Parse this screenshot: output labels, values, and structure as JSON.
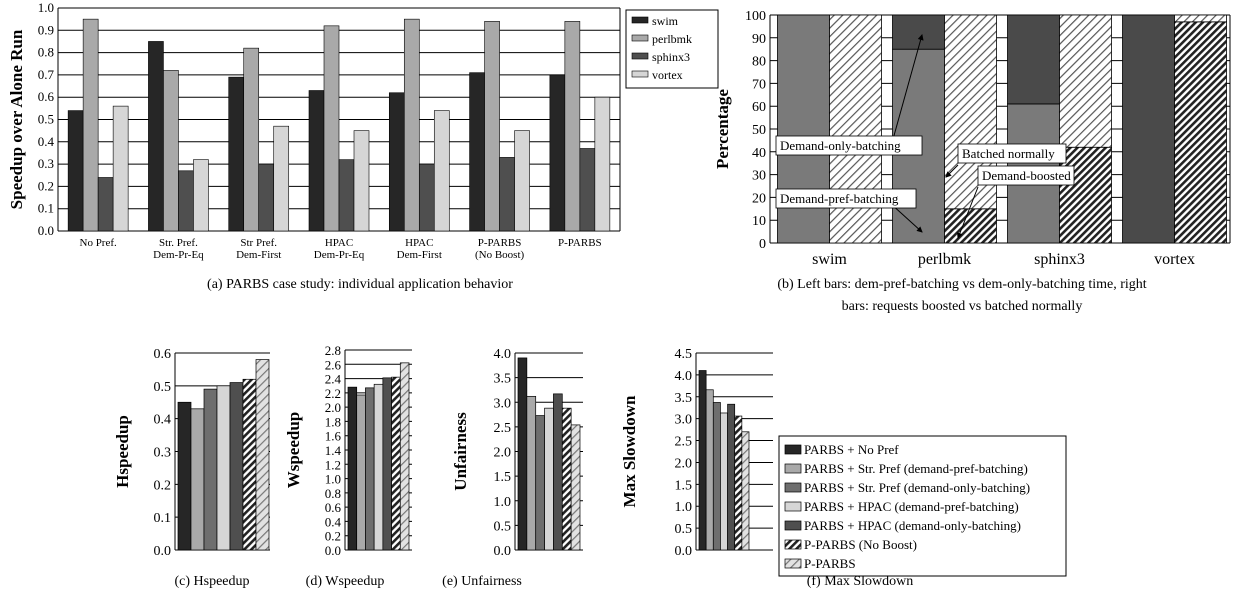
{
  "colors": {
    "c0": "#262626",
    "c1": "#a9a9a9",
    "c2": "#4f4f4f",
    "c3": "#d6d6d6",
    "c4": "#6e6e6e"
  },
  "chart_data": [
    {
      "id": "a",
      "type": "bar",
      "caption": "(a)  PARBS case study: individual application behavior",
      "ylabel": "Speedup over Alone Run",
      "ylim": [
        0,
        1.0
      ],
      "yticks": [
        "0.0",
        "0.1",
        "0.2",
        "0.3",
        "0.4",
        "0.5",
        "0.6",
        "0.7",
        "0.8",
        "0.9",
        "1.0"
      ],
      "categories": [
        [
          "No Pref."
        ],
        [
          "Str. Pref.",
          "Dem-Pr-Eq"
        ],
        [
          "Str Pref.",
          "Dem-First"
        ],
        [
          "HPAC",
          "Dem-Pr-Eq"
        ],
        [
          "HPAC",
          "Dem-First"
        ],
        [
          "P-PARBS",
          "(No Boost)"
        ],
        [
          "P-PARBS"
        ]
      ],
      "series": [
        {
          "name": "swim",
          "color": "#262626",
          "values": [
            0.54,
            0.85,
            0.69,
            0.63,
            0.62,
            0.71,
            0.7
          ]
        },
        {
          "name": "perlbmk",
          "color": "#a9a9a9",
          "values": [
            0.95,
            0.72,
            0.82,
            0.92,
            0.95,
            0.94,
            0.94
          ]
        },
        {
          "name": "sphinx3",
          "color": "#4f4f4f",
          "values": [
            0.24,
            0.27,
            0.3,
            0.32,
            0.3,
            0.33,
            0.37
          ]
        },
        {
          "name": "vortex",
          "color": "#d6d6d6",
          "values": [
            0.56,
            0.32,
            0.47,
            0.45,
            0.54,
            0.45,
            0.6
          ]
        }
      ],
      "grid": true,
      "legend": "right"
    },
    {
      "id": "b",
      "type": "stacked-bar",
      "caption_lines": [
        "(b)  Left bars: dem-pref-batching vs dem-only-batching time, right",
        "bars: requests boosted vs batched normally"
      ],
      "ylabel": "Percentage",
      "ylim": [
        0,
        100
      ],
      "yticks": [
        "0",
        "10",
        "20",
        "30",
        "40",
        "50",
        "60",
        "70",
        "80",
        "90",
        "100"
      ],
      "categories": [
        "swim",
        "perlbmk",
        "sphinx3",
        "vortex"
      ],
      "left_bars": {
        "demand_pref_batching": [
          100,
          85,
          61,
          0
        ],
        "demand_only_batching": [
          0,
          15,
          39,
          100
        ]
      },
      "right_bars": {
        "demand_boosted": [
          0,
          15,
          42,
          97
        ],
        "batched_normally": [
          100,
          85,
          58,
          3
        ]
      },
      "annotations": [
        "Demand-only-batching",
        "Demand-pref-batching",
        "Batched normally",
        "Demand-boosted"
      ]
    },
    {
      "id": "c",
      "type": "bar",
      "caption": "(c)  Hspeedup",
      "ylabel": "Hspeedup",
      "ylim": [
        0,
        0.6
      ],
      "yticks": [
        "0.0",
        "0.1",
        "0.2",
        "0.3",
        "0.4",
        "0.5",
        "0.6"
      ],
      "values": [
        0.45,
        0.43,
        0.49,
        0.5,
        0.51,
        0.52,
        0.58
      ]
    },
    {
      "id": "d",
      "type": "bar",
      "caption": "(d)  Wspeedup",
      "ylabel": "Wspeedup",
      "ylim": [
        0,
        2.8
      ],
      "yticks": [
        "0.0",
        "0.2",
        "0.4",
        "0.6",
        "0.8",
        "1.0",
        "1.2",
        "1.4",
        "1.6",
        "1.8",
        "2.0",
        "2.2",
        "2.4",
        "2.6",
        "2.8"
      ],
      "values": [
        2.28,
        2.17,
        2.27,
        2.32,
        2.41,
        2.42,
        2.62
      ]
    },
    {
      "id": "e",
      "type": "bar",
      "caption": "(e)  Unfairness",
      "ylabel": "Unfairness",
      "ylim": [
        0,
        4.0
      ],
      "yticks": [
        "0.0",
        "0.5",
        "1.0",
        "1.5",
        "2.0",
        "2.5",
        "3.0",
        "3.5",
        "4.0"
      ],
      "values": [
        3.9,
        3.12,
        2.73,
        2.88,
        3.17,
        2.88,
        2.54
      ]
    },
    {
      "id": "f",
      "type": "bar",
      "caption": "(f)  Max Slowdown",
      "ylabel": "Max Slowdown",
      "ylim": [
        0,
        4.5
      ],
      "yticks": [
        "0.0",
        "0.5",
        "1.0",
        "1.5",
        "2.0",
        "2.5",
        "3.0",
        "3.5",
        "4.0",
        "4.5"
      ],
      "values": [
        4.1,
        3.66,
        3.37,
        3.13,
        3.33,
        3.06,
        2.7
      ]
    }
  ],
  "bottom_legend": [
    "PARBS + No Pref",
    "PARBS + Str. Pref (demand-pref-batching)",
    "PARBS + Str. Pref (demand-only-batching)",
    "PARBS + HPAC (demand-pref-batching)",
    "PARBS + HPAC (demand-only-batching)",
    "P-PARBS (No Boost)",
    "P-PARBS"
  ]
}
